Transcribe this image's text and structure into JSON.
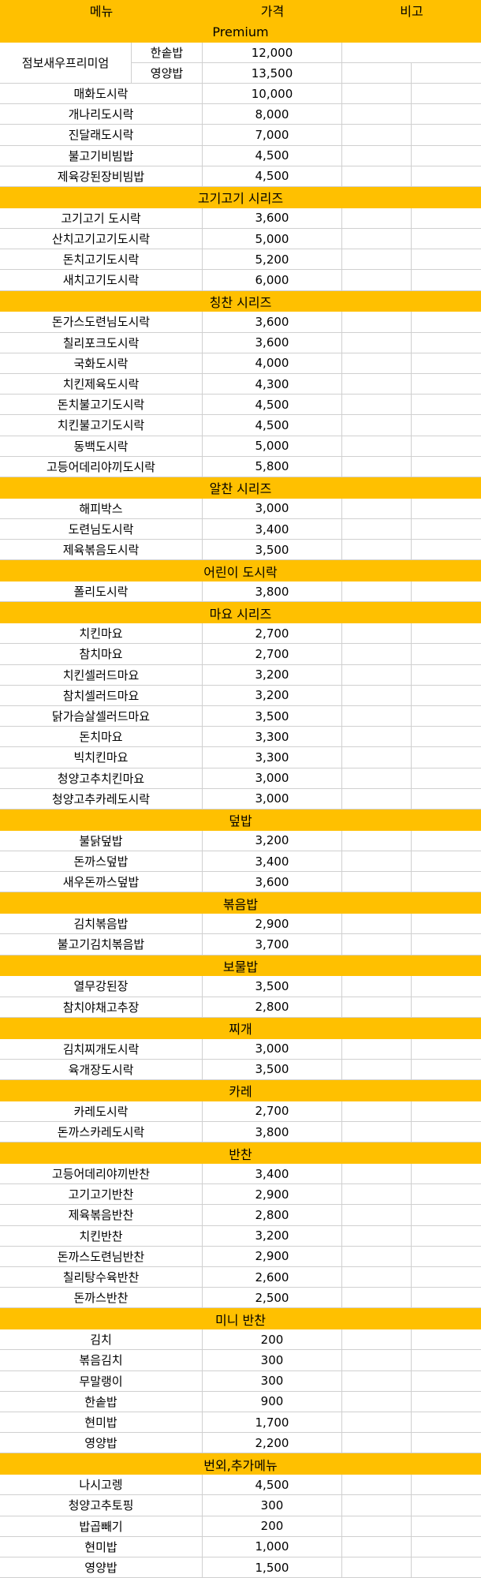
{
  "header": {
    "menu": "메뉴",
    "price": "가격",
    "note": "비고"
  },
  "premium": {
    "title": "Premium",
    "combo": {
      "name": "점보새우프리미엄",
      "options": [
        {
          "label": "한솥밥",
          "price": "12,000"
        },
        {
          "label": "영양밥",
          "price": "13,500"
        }
      ]
    },
    "items": [
      {
        "name": "매화도시락",
        "price": "10,000"
      },
      {
        "name": "개나리도시락",
        "price": "8,000"
      },
      {
        "name": "진달래도시락",
        "price": "7,000"
      },
      {
        "name": "불고기비빔밥",
        "price": "4,500"
      },
      {
        "name": "제육강된장비빔밥",
        "price": "4,500"
      }
    ]
  },
  "sections": [
    {
      "title": "고기고기 시리즈",
      "items": [
        {
          "name": "고기고기 도시락",
          "price": "3,600"
        },
        {
          "name": "산치고기고기도시락",
          "price": "5,000"
        },
        {
          "name": "돈치고기도시락",
          "price": "5,200"
        },
        {
          "name": "새치고기도시락",
          "price": "6,000"
        }
      ]
    },
    {
      "title": "칭찬 시리즈",
      "items": [
        {
          "name": "돈가스도련님도시락",
          "price": "3,600"
        },
        {
          "name": "칠리포크도시락",
          "price": "3,600"
        },
        {
          "name": "국화도시락",
          "price": "4,000"
        },
        {
          "name": "치킨제육도시락",
          "price": "4,300"
        },
        {
          "name": "돈치불고기도시락",
          "price": "4,500"
        },
        {
          "name": "치킨불고기도시락",
          "price": "4,500"
        },
        {
          "name": "동백도시락",
          "price": "5,000"
        },
        {
          "name": "고등어데리야끼도시락",
          "price": "5,800"
        }
      ]
    },
    {
      "title": "알찬 시리즈",
      "items": [
        {
          "name": "해피박스",
          "price": "3,000"
        },
        {
          "name": "도련님도시락",
          "price": "3,400"
        },
        {
          "name": "제육볶음도시락",
          "price": "3,500"
        }
      ]
    },
    {
      "title": "어린이 도시락",
      "items": [
        {
          "name": "폴리도시락",
          "price": "3,800"
        }
      ]
    },
    {
      "title": "마요 시리즈",
      "items": [
        {
          "name": "치킨마요",
          "price": "2,700"
        },
        {
          "name": "참치마요",
          "price": "2,700"
        },
        {
          "name": "치킨셀러드마요",
          "price": "3,200"
        },
        {
          "name": "참치셀러드마요",
          "price": "3,200"
        },
        {
          "name": "닭가슴살셀러드마요",
          "price": "3,500"
        },
        {
          "name": "돈치마요",
          "price": "3,300"
        },
        {
          "name": "빅치킨마요",
          "price": "3,300"
        },
        {
          "name": "청양고추치킨마요",
          "price": "3,000"
        },
        {
          "name": "청양고추카레도시락",
          "price": "3,000"
        }
      ]
    },
    {
      "title": "덮밥",
      "items": [
        {
          "name": "불닭덮밥",
          "price": "3,200"
        },
        {
          "name": "돈까스덮밥",
          "price": "3,400"
        },
        {
          "name": "새우돈까스덮밥",
          "price": "3,600"
        }
      ]
    },
    {
      "title": "볶음밥",
      "items": [
        {
          "name": "김치볶음밥",
          "price": "2,900"
        },
        {
          "name": "불고기김치볶음밥",
          "price": "3,700"
        }
      ]
    },
    {
      "title": "보물밥",
      "items": [
        {
          "name": "열무강된장",
          "price": "3,500"
        },
        {
          "name": "참치야채고추장",
          "price": "2,800"
        }
      ]
    },
    {
      "title": "찌개",
      "items": [
        {
          "name": "김치찌개도시락",
          "price": "3,000"
        },
        {
          "name": "육개장도시락",
          "price": "3,500"
        }
      ]
    },
    {
      "title": "카레",
      "items": [
        {
          "name": "카레도시락",
          "price": "2,700"
        },
        {
          "name": "돈까스카레도시락",
          "price": "3,800"
        }
      ]
    },
    {
      "title": "반찬",
      "items": [
        {
          "name": "고등어데리야끼반찬",
          "price": "3,400"
        },
        {
          "name": "고기고기반찬",
          "price": "2,900"
        },
        {
          "name": "제육볶음반찬",
          "price": "2,800"
        },
        {
          "name": "치킨반찬",
          "price": "3,200"
        },
        {
          "name": "돈까스도련님반찬",
          "price": "2,900"
        },
        {
          "name": "칠리탕수육반찬",
          "price": "2,600"
        },
        {
          "name": "돈까스반찬",
          "price": "2,500"
        }
      ]
    },
    {
      "title": "미니 반찬",
      "items": [
        {
          "name": "김치",
          "price": "200"
        },
        {
          "name": "볶음김치",
          "price": "300"
        },
        {
          "name": "무말랭이",
          "price": "300"
        },
        {
          "name": "한솥밥",
          "price": "900"
        },
        {
          "name": "현미밥",
          "price": "1,700"
        },
        {
          "name": "영양밥",
          "price": "2,200"
        }
      ]
    },
    {
      "title": "번외,추가메뉴",
      "items": [
        {
          "name": "나시고렝",
          "price": "4,500"
        },
        {
          "name": "청양고추토핑",
          "price": "300"
        },
        {
          "name": "밥곱빼기",
          "price": "200"
        },
        {
          "name": "현미밥",
          "price": "1,000"
        },
        {
          "name": "영양밥",
          "price": "1,500"
        }
      ]
    }
  ]
}
